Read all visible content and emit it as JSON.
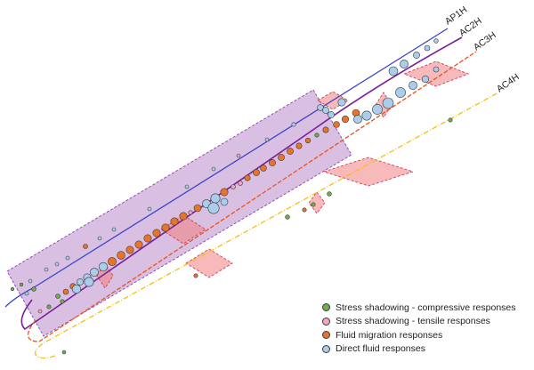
{
  "wells": [
    {
      "name": "AP1H",
      "color": "#3a45c8",
      "style": "solid"
    },
    {
      "name": "AC2H",
      "color": "#7a1f9a",
      "style": "solid"
    },
    {
      "name": "AC3H",
      "color": "#e8531f",
      "style": "dashed"
    },
    {
      "name": "AC4H",
      "color": "#f2c014",
      "style": "dashed"
    }
  ],
  "legend": [
    {
      "label": "Stress shadowing - compressive responses",
      "color": "#6ab04c"
    },
    {
      "label": "Stress shadowing - tensile responses",
      "color": "#f3a6c4"
    },
    {
      "label": "Fluid migration responses",
      "color": "#e8742a"
    },
    {
      "label": "Direct fluid responses",
      "color": "#a9cdea"
    }
  ],
  "colors": {
    "fracture_zone": "#f08080",
    "stimulated_region": "#b98ac9"
  }
}
